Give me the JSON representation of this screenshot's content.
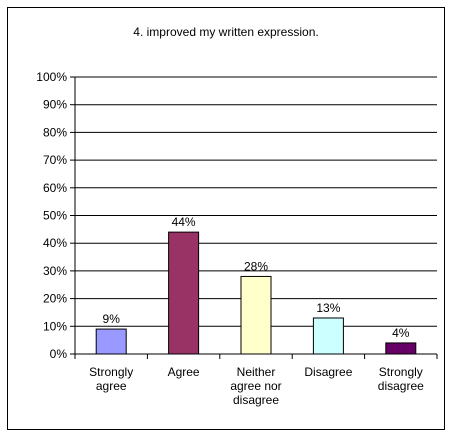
{
  "chart_data": {
    "type": "bar",
    "title": "4. improved my written expression.",
    "categories": [
      [
        "Strongly",
        "agree"
      ],
      [
        "Agree"
      ],
      [
        "Neither",
        "agree nor",
        "disagree"
      ],
      [
        "Disagree"
      ],
      [
        "Strongly",
        "disagree"
      ]
    ],
    "values": [
      9,
      44,
      28,
      13,
      4
    ],
    "data_labels": [
      "9%",
      "44%",
      "28%",
      "13%",
      "4%"
    ],
    "colors": [
      "#9999FF",
      "#993366",
      "#FFFFCC",
      "#CCFFFF",
      "#660066"
    ],
    "ylim": [
      0,
      100
    ],
    "yticks": [
      0,
      10,
      20,
      30,
      40,
      50,
      60,
      70,
      80,
      90,
      100
    ],
    "ytick_labels": [
      "0%",
      "10%",
      "20%",
      "30%",
      "40%",
      "50%",
      "60%",
      "70%",
      "80%",
      "90%",
      "100%"
    ],
    "grid": true,
    "legend": "none"
  }
}
